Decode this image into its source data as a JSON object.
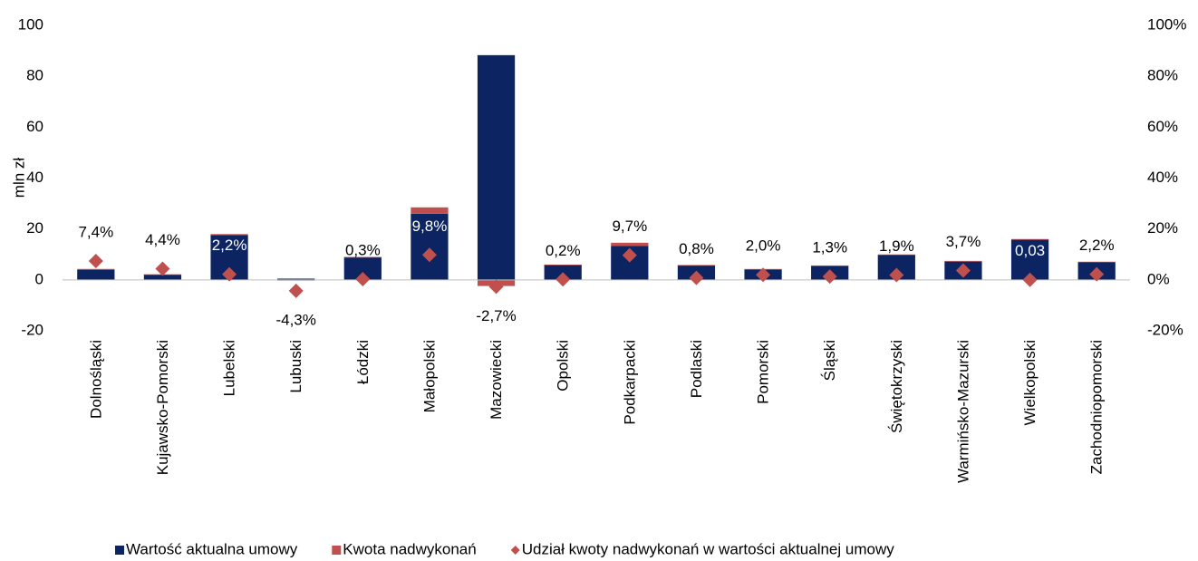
{
  "chart_data": {
    "type": "bar",
    "y_label": "mln zł",
    "categories": [
      "Dolnośląski",
      "Kujawsko-Pomorski",
      "Lubelski",
      "Lubuski",
      "Łódzki",
      "Małopolski",
      "Mazowiecki",
      "Opolski",
      "Podkarpacki",
      "Podlaski",
      "Pomorski",
      "Śląski",
      "Świętokrzyski",
      "Warmińsko-Mazurski",
      "Wielkopolski",
      "Zachodniopomorski"
    ],
    "series": [
      {
        "name": "Wartość aktualna umowy",
        "color": "#0c2461",
        "values": [
          4.0,
          2.1,
          17.6,
          0.5,
          9.0,
          26.0,
          88.3,
          6.0,
          13.3,
          5.8,
          4.2,
          5.6,
          9.8,
          7.2,
          16.0,
          7.0
        ]
      },
      {
        "name": "Kwota nadwykonań",
        "color": "#c0504d",
        "values": [
          0.3,
          0.1,
          0.4,
          -0.02,
          0.03,
          2.5,
          -2.4,
          0.01,
          1.3,
          0.05,
          0.08,
          0.07,
          0.2,
          0.27,
          0.005,
          0.15
        ]
      },
      {
        "name": "Udział kwoty nadwykonań w wartości aktualnej umowy",
        "color": "#c0504d",
        "axis": "y2",
        "values": [
          7.4,
          4.4,
          2.2,
          -4.3,
          0.3,
          9.8,
          -2.7,
          0.2,
          9.7,
          0.8,
          2.0,
          1.3,
          1.9,
          3.7,
          0.03,
          2.2
        ],
        "value_labels": [
          "7,4%",
          "4,4%",
          "2,2%",
          "-4,3%",
          "0,3%",
          "9,8%",
          "-2,7%",
          "0,2%",
          "9,7%",
          "0,8%",
          "2,0%",
          "1,3%",
          "1,9%",
          "3,7%",
          "0,03",
          "2,2%"
        ]
      }
    ],
    "ylim": [
      -20,
      100
    ],
    "yticks": [
      -20,
      0,
      20,
      40,
      60,
      80,
      100
    ],
    "y2lim": [
      -20,
      100
    ],
    "y2ticks": [
      {
        "value": -20,
        "label": "-20%"
      },
      {
        "value": 0,
        "label": "0%"
      },
      {
        "value": 20,
        "label": "20%"
      },
      {
        "value": 40,
        "label": "40%"
      },
      {
        "value": 60,
        "label": "60%"
      },
      {
        "value": 80,
        "label": "80%"
      },
      {
        "value": 100,
        "label": "100%"
      }
    ]
  }
}
